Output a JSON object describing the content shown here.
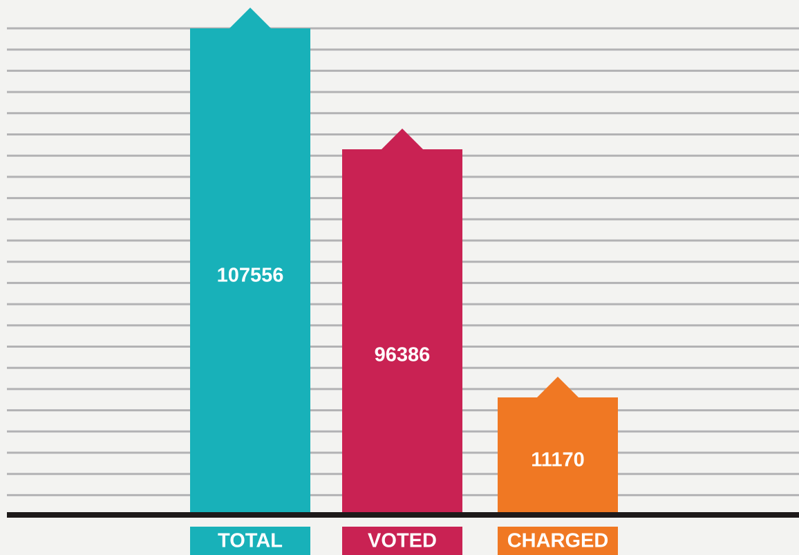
{
  "bars": [
    {
      "label": "TOTAL",
      "value": 107556
    },
    {
      "label": "VOTED",
      "value": 96386
    },
    {
      "label": "CHARGED",
      "value": 11170
    }
  ]
}
